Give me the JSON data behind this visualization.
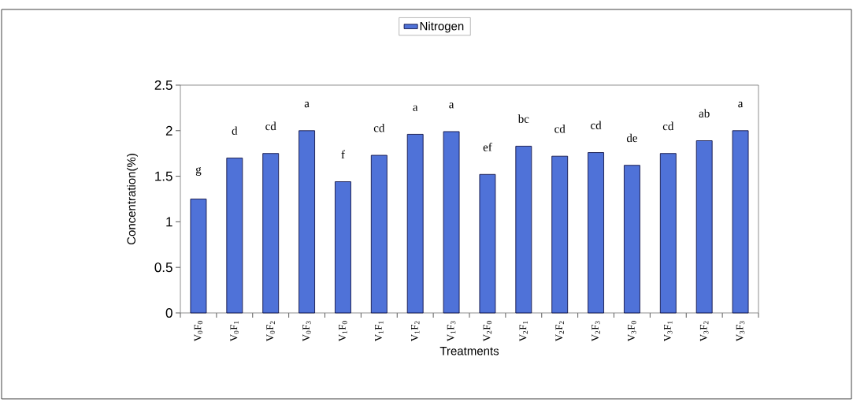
{
  "chart_data": {
    "type": "bar",
    "categories": [
      "V$_{0}$F$_{0}$",
      "V$_{0}$F$_{1}$",
      "V$_{0}$F$_{2}$",
      "V$_{0}$F$_{3}$",
      "V$_{1}$F$_{0}$",
      "V$_{1}$F$_{1}$",
      "V$_{1}$F$_{2}$",
      "V$_{1}$F$_{3}$",
      "V$_{2}$F$_{0}$",
      "V$_{2}$F$_{1}$",
      "V$_{2}$F$_{2}$",
      "V$_{2}$F$_{3}$",
      "V$_{3}$F$_{0}$",
      "V$_{3}$F$_{1}$",
      "V$_{3}$F$_{2}$",
      "V$_{3}$F$_{3}$"
    ],
    "series": [
      {
        "name": "Nitrogen",
        "color": "#4f72d8",
        "values": [
          1.25,
          1.7,
          1.75,
          2.0,
          1.44,
          1.73,
          1.96,
          1.99,
          1.52,
          1.83,
          1.72,
          1.76,
          1.62,
          1.75,
          1.89,
          2.0
        ],
        "value_labels": [
          "g",
          "d",
          "cd",
          "a",
          "f",
          "cd",
          "a",
          "a",
          "ef",
          "bc",
          "cd",
          "cd",
          "de",
          "cd",
          "ab",
          "a"
        ]
      }
    ],
    "xlabel": "Treatments",
    "ylabel": "Concentration(%)",
    "ylim": [
      0,
      2.5
    ],
    "yticks": [
      0,
      0.5,
      1,
      1.5,
      2,
      2.5
    ],
    "legend": "top"
  }
}
